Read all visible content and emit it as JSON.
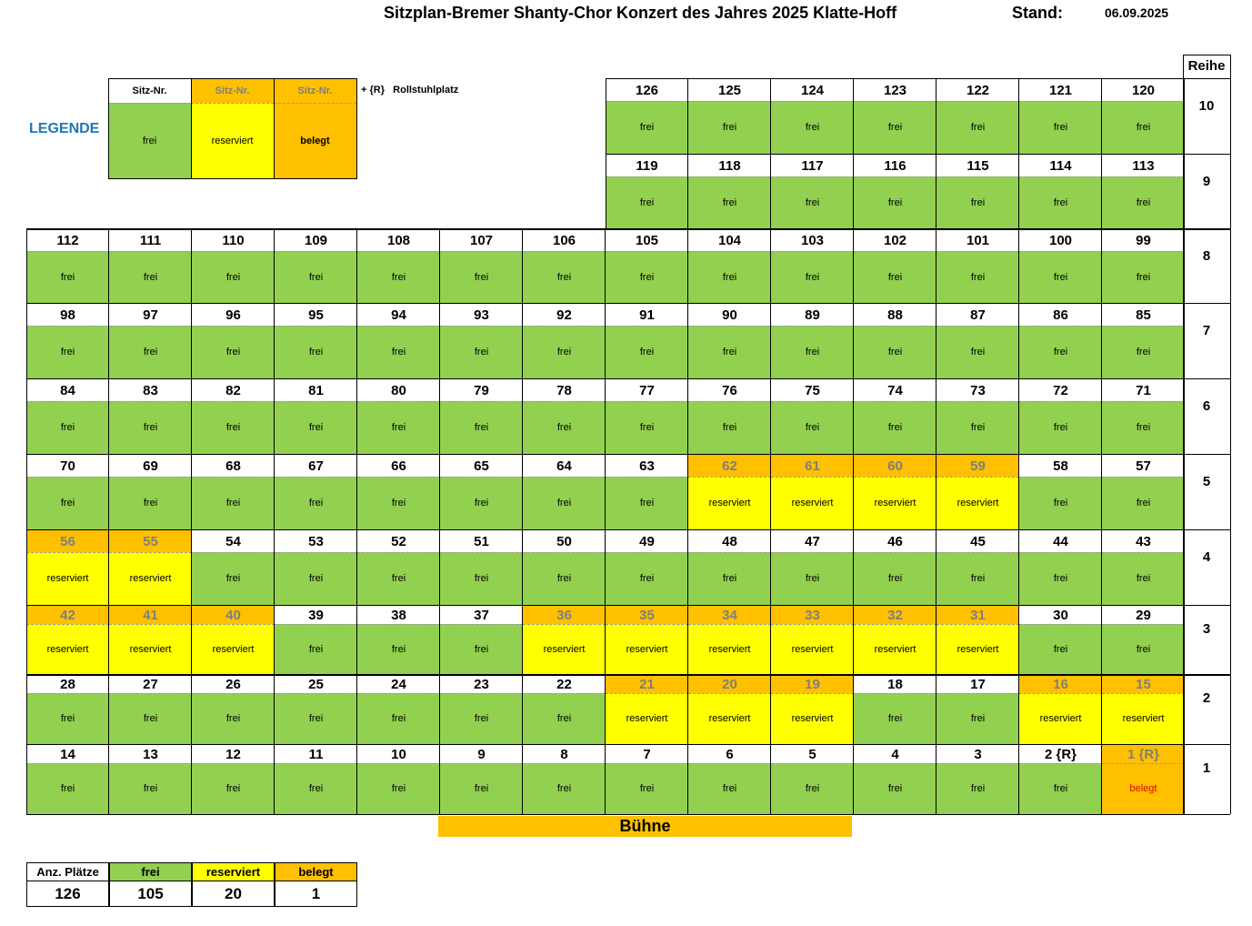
{
  "title": "Sitzplan-Bremer Shanty-Chor Konzert des Jahres  2025 Klatte-Hoff",
  "stand_label": "Stand:",
  "stand_date": "06.09.2025",
  "reihe_label": "Reihe",
  "legend": {
    "title": "LEGENDE",
    "header": "Sitz-Nr.",
    "items": [
      {
        "label": "frei",
        "status": "frei"
      },
      {
        "label": "reserviert",
        "status": "reserviert"
      },
      {
        "label": "belegt",
        "status": "belegt"
      }
    ],
    "wheelchair_note": "+ {R}   Rollstuhlplatz"
  },
  "colors": {
    "frei": "#92D050",
    "reserviert": "#FFFF00",
    "belegt": "#FFC000"
  },
  "rows": [
    {
      "reihe": "10",
      "seats": [
        {
          "n": "126",
          "s": "frei"
        },
        {
          "n": "125",
          "s": "frei"
        },
        {
          "n": "124",
          "s": "frei"
        },
        {
          "n": "123",
          "s": "frei"
        },
        {
          "n": "122",
          "s": "frei"
        },
        {
          "n": "121",
          "s": "frei"
        },
        {
          "n": "120",
          "s": "frei"
        }
      ]
    },
    {
      "reihe": "9",
      "seats": [
        {
          "n": "119",
          "s": "frei"
        },
        {
          "n": "118",
          "s": "frei"
        },
        {
          "n": "117",
          "s": "frei"
        },
        {
          "n": "116",
          "s": "frei"
        },
        {
          "n": "115",
          "s": "frei"
        },
        {
          "n": "114",
          "s": "frei"
        },
        {
          "n": "113",
          "s": "frei"
        }
      ]
    },
    {
      "reihe": "8",
      "seats": [
        {
          "n": "112",
          "s": "frei"
        },
        {
          "n": "111",
          "s": "frei"
        },
        {
          "n": "110",
          "s": "frei"
        },
        {
          "n": "109",
          "s": "frei"
        },
        {
          "n": "108",
          "s": "frei"
        },
        {
          "n": "107",
          "s": "frei"
        },
        {
          "n": "106",
          "s": "frei"
        },
        {
          "n": "105",
          "s": "frei"
        },
        {
          "n": "104",
          "s": "frei"
        },
        {
          "n": "103",
          "s": "frei"
        },
        {
          "n": "102",
          "s": "frei"
        },
        {
          "n": "101",
          "s": "frei"
        },
        {
          "n": "100",
          "s": "frei"
        },
        {
          "n": "99",
          "s": "frei"
        }
      ]
    },
    {
      "reihe": "7",
      "seats": [
        {
          "n": "98",
          "s": "frei"
        },
        {
          "n": "97",
          "s": "frei"
        },
        {
          "n": "96",
          "s": "frei"
        },
        {
          "n": "95",
          "s": "frei"
        },
        {
          "n": "94",
          "s": "frei"
        },
        {
          "n": "93",
          "s": "frei"
        },
        {
          "n": "92",
          "s": "frei"
        },
        {
          "n": "91",
          "s": "frei"
        },
        {
          "n": "90",
          "s": "frei"
        },
        {
          "n": "89",
          "s": "frei"
        },
        {
          "n": "88",
          "s": "frei"
        },
        {
          "n": "87",
          "s": "frei"
        },
        {
          "n": "86",
          "s": "frei"
        },
        {
          "n": "85",
          "s": "frei"
        }
      ]
    },
    {
      "reihe": "6",
      "seats": [
        {
          "n": "84",
          "s": "frei"
        },
        {
          "n": "83",
          "s": "frei"
        },
        {
          "n": "82",
          "s": "frei"
        },
        {
          "n": "81",
          "s": "frei"
        },
        {
          "n": "80",
          "s": "frei"
        },
        {
          "n": "79",
          "s": "frei"
        },
        {
          "n": "78",
          "s": "frei"
        },
        {
          "n": "77",
          "s": "frei"
        },
        {
          "n": "76",
          "s": "frei"
        },
        {
          "n": "75",
          "s": "frei"
        },
        {
          "n": "74",
          "s": "frei"
        },
        {
          "n": "73",
          "s": "frei"
        },
        {
          "n": "72",
          "s": "frei"
        },
        {
          "n": "71",
          "s": "frei"
        }
      ]
    },
    {
      "reihe": "5",
      "seats": [
        {
          "n": "70",
          "s": "frei"
        },
        {
          "n": "69",
          "s": "frei"
        },
        {
          "n": "68",
          "s": "frei"
        },
        {
          "n": "67",
          "s": "frei"
        },
        {
          "n": "66",
          "s": "frei"
        },
        {
          "n": "65",
          "s": "frei"
        },
        {
          "n": "64",
          "s": "frei"
        },
        {
          "n": "63",
          "s": "frei"
        },
        {
          "n": "62",
          "s": "reserviert"
        },
        {
          "n": "61",
          "s": "reserviert"
        },
        {
          "n": "60",
          "s": "reserviert"
        },
        {
          "n": "59",
          "s": "reserviert"
        },
        {
          "n": "58",
          "s": "frei"
        },
        {
          "n": "57",
          "s": "frei"
        }
      ]
    },
    {
      "reihe": "4",
      "seats": [
        {
          "n": "56",
          "s": "reserviert"
        },
        {
          "n": "55",
          "s": "reserviert"
        },
        {
          "n": "54",
          "s": "frei"
        },
        {
          "n": "53",
          "s": "frei"
        },
        {
          "n": "52",
          "s": "frei"
        },
        {
          "n": "51",
          "s": "frei"
        },
        {
          "n": "50",
          "s": "frei"
        },
        {
          "n": "49",
          "s": "frei"
        },
        {
          "n": "48",
          "s": "frei"
        },
        {
          "n": "47",
          "s": "frei"
        },
        {
          "n": "46",
          "s": "frei"
        },
        {
          "n": "45",
          "s": "frei"
        },
        {
          "n": "44",
          "s": "frei"
        },
        {
          "n": "43",
          "s": "frei"
        }
      ]
    },
    {
      "reihe": "3",
      "seats": [
        {
          "n": "42",
          "s": "reserviert"
        },
        {
          "n": "41",
          "s": "reserviert"
        },
        {
          "n": "40",
          "s": "reserviert"
        },
        {
          "n": "39",
          "s": "frei"
        },
        {
          "n": "38",
          "s": "frei"
        },
        {
          "n": "37",
          "s": "frei"
        },
        {
          "n": "36",
          "s": "reserviert"
        },
        {
          "n": "35",
          "s": "reserviert"
        },
        {
          "n": "34",
          "s": "reserviert"
        },
        {
          "n": "33",
          "s": "reserviert"
        },
        {
          "n": "32",
          "s": "reserviert"
        },
        {
          "n": "31",
          "s": "reserviert"
        },
        {
          "n": "30",
          "s": "frei"
        },
        {
          "n": "29",
          "s": "frei"
        }
      ]
    },
    {
      "reihe": "2",
      "seats": [
        {
          "n": "28",
          "s": "frei"
        },
        {
          "n": "27",
          "s": "frei"
        },
        {
          "n": "26",
          "s": "frei"
        },
        {
          "n": "25",
          "s": "frei"
        },
        {
          "n": "24",
          "s": "frei"
        },
        {
          "n": "23",
          "s": "frei"
        },
        {
          "n": "22",
          "s": "frei"
        },
        {
          "n": "21",
          "s": "reserviert"
        },
        {
          "n": "20",
          "s": "reserviert"
        },
        {
          "n": "19",
          "s": "reserviert"
        },
        {
          "n": "18",
          "s": "frei"
        },
        {
          "n": "17",
          "s": "frei"
        },
        {
          "n": "16",
          "s": "reserviert"
        },
        {
          "n": "15",
          "s": "reserviert"
        }
      ]
    },
    {
      "reihe": "1",
      "seats": [
        {
          "n": "14",
          "s": "frei"
        },
        {
          "n": "13",
          "s": "frei"
        },
        {
          "n": "12",
          "s": "frei"
        },
        {
          "n": "11",
          "s": "frei"
        },
        {
          "n": "10",
          "s": "frei"
        },
        {
          "n": "9",
          "s": "frei"
        },
        {
          "n": "8",
          "s": "frei"
        },
        {
          "n": "7",
          "s": "frei"
        },
        {
          "n": "6",
          "s": "frei"
        },
        {
          "n": "5",
          "s": "frei"
        },
        {
          "n": "4",
          "s": "frei"
        },
        {
          "n": "3",
          "s": "frei"
        },
        {
          "n": "2 {R}",
          "s": "frei"
        },
        {
          "n": "1 {R}",
          "s": "belegt"
        }
      ]
    }
  ],
  "stage_label": "Bühne",
  "summary": {
    "headers": [
      "Anz. Plätze",
      "frei",
      "reserviert",
      "belegt"
    ],
    "values": [
      "126",
      "105",
      "20",
      "1"
    ]
  }
}
